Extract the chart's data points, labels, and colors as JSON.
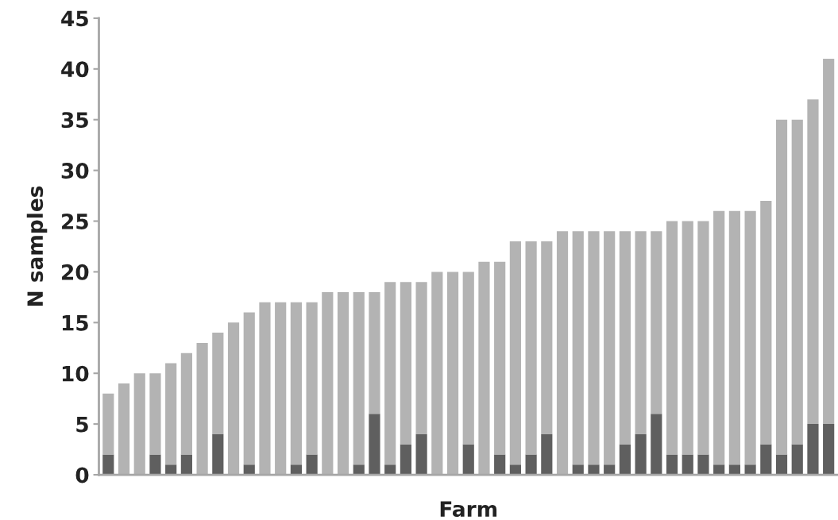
{
  "chart_data": {
    "type": "bar",
    "stacked": true,
    "xlabel": "Farm",
    "ylabel": "N samples",
    "categories": [
      null,
      null,
      null,
      null,
      null,
      null,
      null,
      null,
      null,
      null,
      null,
      null,
      null,
      null,
      null,
      null,
      null,
      null,
      null,
      null,
      null,
      null,
      null,
      null,
      null,
      null,
      null,
      null,
      null,
      null,
      null,
      null,
      null,
      null,
      null,
      null,
      null,
      null,
      null,
      null,
      null,
      null,
      null,
      null,
      null,
      null,
      null
    ],
    "series": [
      {
        "color": "#5f5f5f",
        "values": [
          2,
          0,
          0,
          2,
          1,
          2,
          0,
          4,
          0,
          1,
          0,
          0,
          1,
          2,
          0,
          0,
          1,
          6,
          1,
          3,
          4,
          0,
          0,
          3,
          0,
          2,
          1,
          2,
          4,
          0,
          1,
          1,
          1,
          3,
          4,
          6,
          2,
          2,
          2,
          1,
          1,
          1,
          3,
          2,
          3,
          5,
          5
        ]
      },
      {
        "color": "#b3b3b3",
        "values": [
          6,
          9,
          10,
          8,
          10,
          10,
          13,
          10,
          15,
          15,
          17,
          17,
          16,
          15,
          18,
          18,
          17,
          12,
          18,
          16,
          15,
          20,
          20,
          17,
          21,
          19,
          22,
          21,
          19,
          24,
          23,
          23,
          23,
          21,
          20,
          18,
          23,
          23,
          23,
          25,
          25,
          25,
          24,
          33,
          32,
          32,
          36
        ]
      }
    ],
    "ylim": [
      0,
      45
    ],
    "yticks": [
      0,
      5,
      10,
      15,
      20,
      25,
      30,
      35,
      40,
      45
    ],
    "grid": false,
    "legend": false
  }
}
